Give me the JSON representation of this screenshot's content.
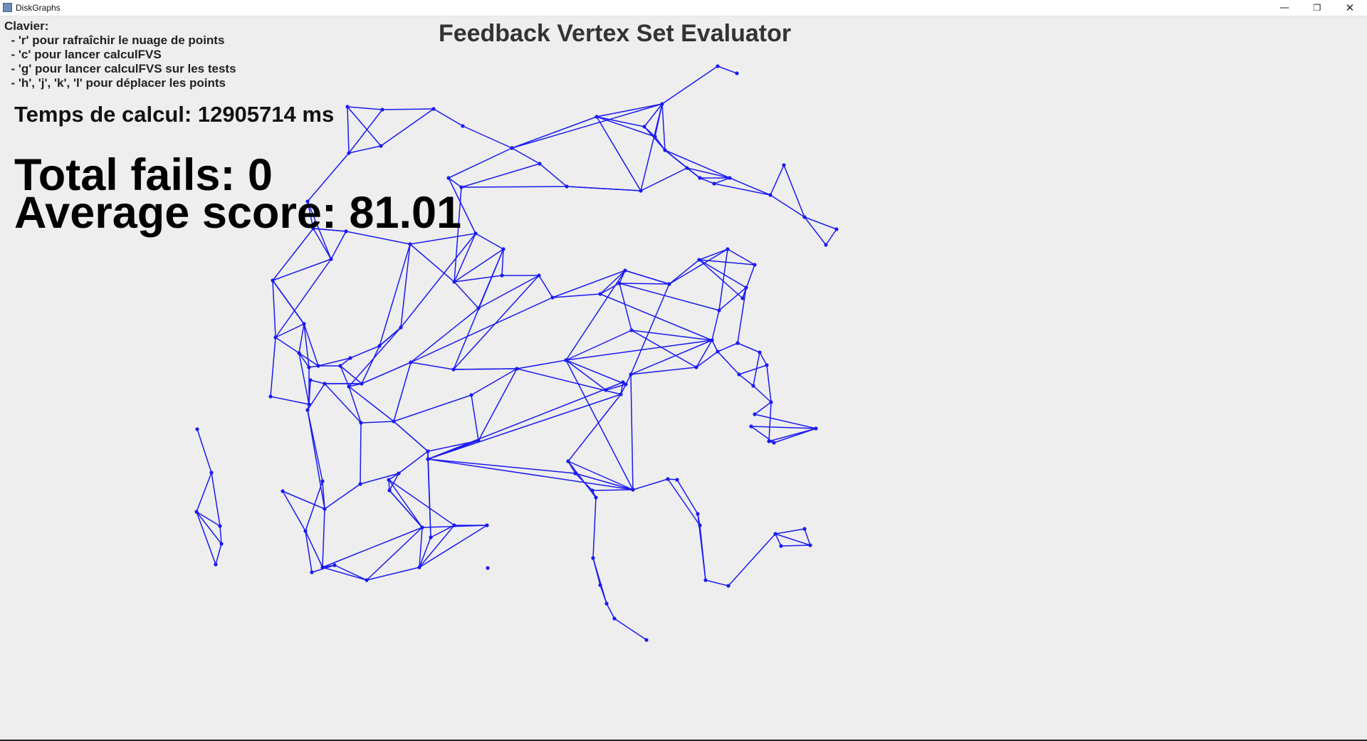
{
  "window": {
    "title": "DiskGraphs",
    "icon": "java-app-icon",
    "controls": {
      "minimize": "—",
      "restore": "❐",
      "close": "✕"
    }
  },
  "help": {
    "title": "Clavier:",
    "lines": [
      "  - 'r' pour rafraîchir le nuage de points",
      "  - 'c' pour lancer calculFVS",
      "  - 'g' pour lancer calculFVS sur les tests",
      "  - 'h', 'j', 'k', 'l' pour déplacer les points"
    ]
  },
  "main_title": "Feedback Vertex Set Evaluator",
  "stats": {
    "calc_time": "Temps de calcul: 12905714 ms",
    "total_fails": "Total fails: 0",
    "average_score": "Average score: 81.01"
  },
  "colors": {
    "graph": "#1a1af0",
    "background": "#eeeeee"
  }
}
